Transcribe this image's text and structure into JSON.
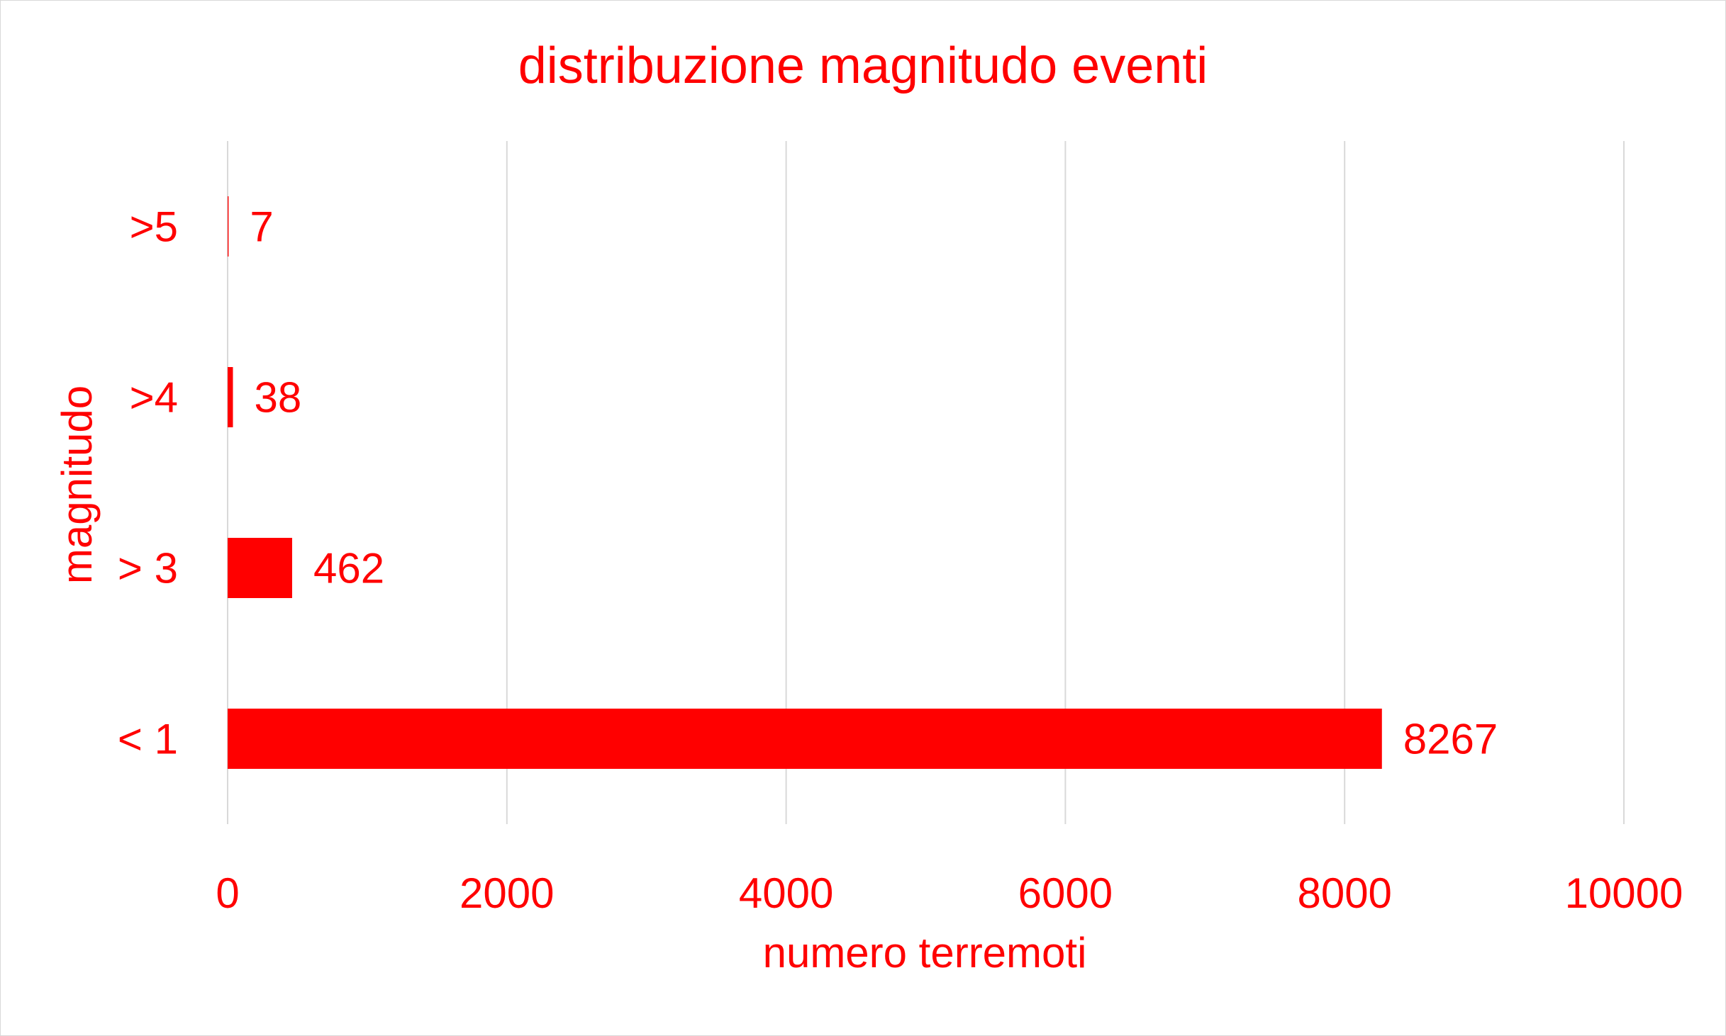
{
  "chart_data": {
    "type": "bar",
    "orientation": "horizontal",
    "title": "distribuzione magnitudo eventi",
    "xlabel": "numero terremoti",
    "ylabel": "magnitudo",
    "categories": [
      "< 1",
      "> 3",
      ">4",
      ">5"
    ],
    "values": [
      8267,
      462,
      38,
      7
    ],
    "xlim": [
      0,
      10000
    ],
    "x_ticks": [
      0,
      2000,
      4000,
      6000,
      8000,
      10000
    ],
    "grid": "vertical",
    "legend": "none",
    "data_labels": true
  },
  "colors": {
    "bar": "#ff0000",
    "text": "#ff0000",
    "grid": "#d9d9d9",
    "border": "#d9d9d9",
    "background": "#ffffff"
  }
}
